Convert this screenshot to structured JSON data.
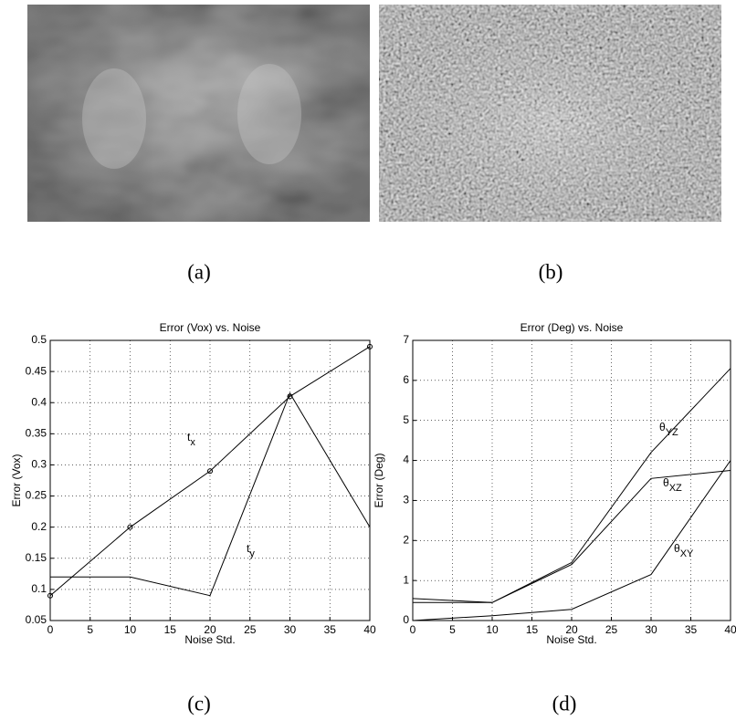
{
  "captions": [
    "(a)",
    "(b)",
    "(c)",
    "(d)"
  ],
  "chart_data": [
    {
      "type": "line",
      "title": "Error (Vox) vs. Noise",
      "xlabel": "Noise Std.",
      "ylabel": "Error (Vox)",
      "x": [
        0,
        10,
        20,
        30,
        40
      ],
      "xlim": [
        0,
        40
      ],
      "xticks": [
        0,
        5,
        10,
        15,
        20,
        25,
        30,
        35,
        40
      ],
      "ylim": [
        0.05,
        0.5
      ],
      "yticks": [
        0.05,
        0.1,
        0.15,
        0.2,
        0.25,
        0.3,
        0.35,
        0.4,
        0.45,
        0.5
      ],
      "grid": true,
      "series": [
        {
          "name": "t",
          "name_sub": "x",
          "color": "#000000",
          "marker": "circle",
          "values": [
            0.09,
            0.2,
            0.29,
            0.41,
            0.49
          ]
        },
        {
          "name": "t",
          "name_sub": "y",
          "color": "#000000",
          "values": [
            0.12,
            0.12,
            0.09,
            0.415,
            0.2
          ]
        }
      ]
    },
    {
      "type": "line",
      "title": "Error (Deg) vs. Noise",
      "xlabel": "Noise Std.",
      "ylabel": "Error (Deg)",
      "x": [
        0,
        10,
        20,
        30,
        40
      ],
      "xlim": [
        0,
        40
      ],
      "xticks": [
        0,
        5,
        10,
        15,
        20,
        25,
        30,
        35,
        40
      ],
      "ylim": [
        0,
        7
      ],
      "yticks": [
        0,
        1,
        2,
        3,
        4,
        5,
        6,
        7
      ],
      "grid": true,
      "series": [
        {
          "name": "θ",
          "name_sub": "YZ",
          "color": "#000000",
          "values": [
            0.55,
            0.45,
            1.45,
            4.2,
            6.3
          ]
        },
        {
          "name": "θ",
          "name_sub": "XZ",
          "color": "#000000",
          "values": [
            0.45,
            0.45,
            1.4,
            3.55,
            3.75
          ]
        },
        {
          "name": "θ",
          "name_sub": "XY",
          "color": "#000000",
          "values": [
            0,
            0.12,
            0.28,
            1.15,
            4.0
          ]
        }
      ]
    }
  ]
}
